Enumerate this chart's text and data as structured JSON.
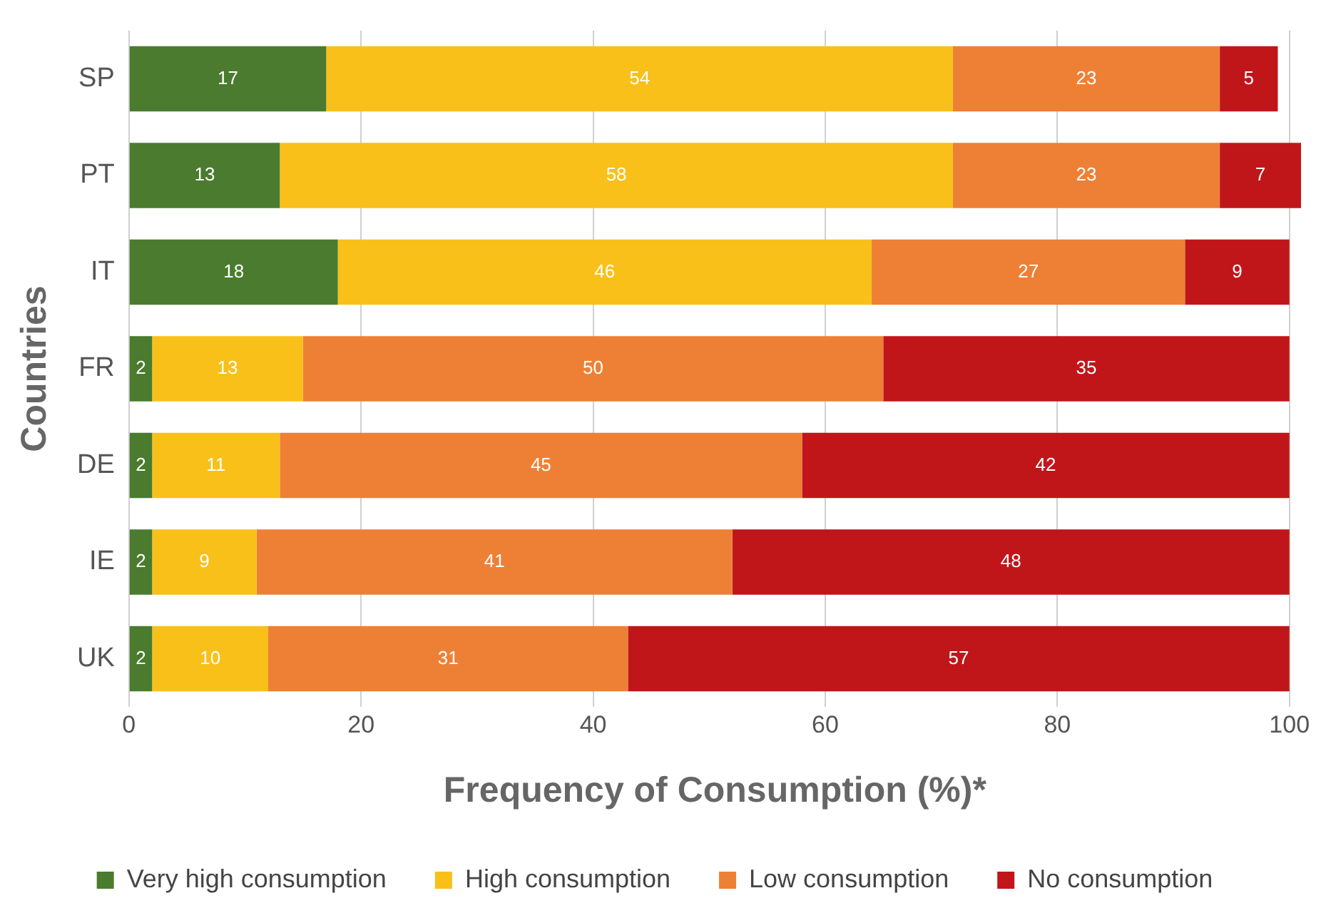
{
  "chart_data": {
    "type": "bar",
    "orientation": "horizontal",
    "stacked": true,
    "xlabel": "Frequency of Consumption (%)*",
    "ylabel": "Countries",
    "categories": [
      "SP",
      "PT",
      "IT",
      "FR",
      "DE",
      "IE",
      "UK"
    ],
    "series": [
      {
        "name": "Very high consumption",
        "color": "#4a7b2e",
        "values": [
          17,
          13,
          18,
          2,
          2,
          2,
          2
        ]
      },
      {
        "name": "High consumption",
        "color": "#f9c019",
        "values": [
          54,
          58,
          46,
          13,
          11,
          9,
          10
        ]
      },
      {
        "name": "Low consumption",
        "color": "#ee8035",
        "values": [
          23,
          23,
          27,
          50,
          45,
          41,
          31
        ]
      },
      {
        "name": "No consumption",
        "color": "#c0161a",
        "values": [
          5,
          7,
          9,
          35,
          42,
          48,
          57
        ]
      }
    ],
    "xlim": [
      0,
      101
    ],
    "xticks": [
      0,
      20,
      40,
      60,
      80,
      100
    ],
    "grid": "x",
    "legend": "bottom",
    "data_labels": true
  }
}
